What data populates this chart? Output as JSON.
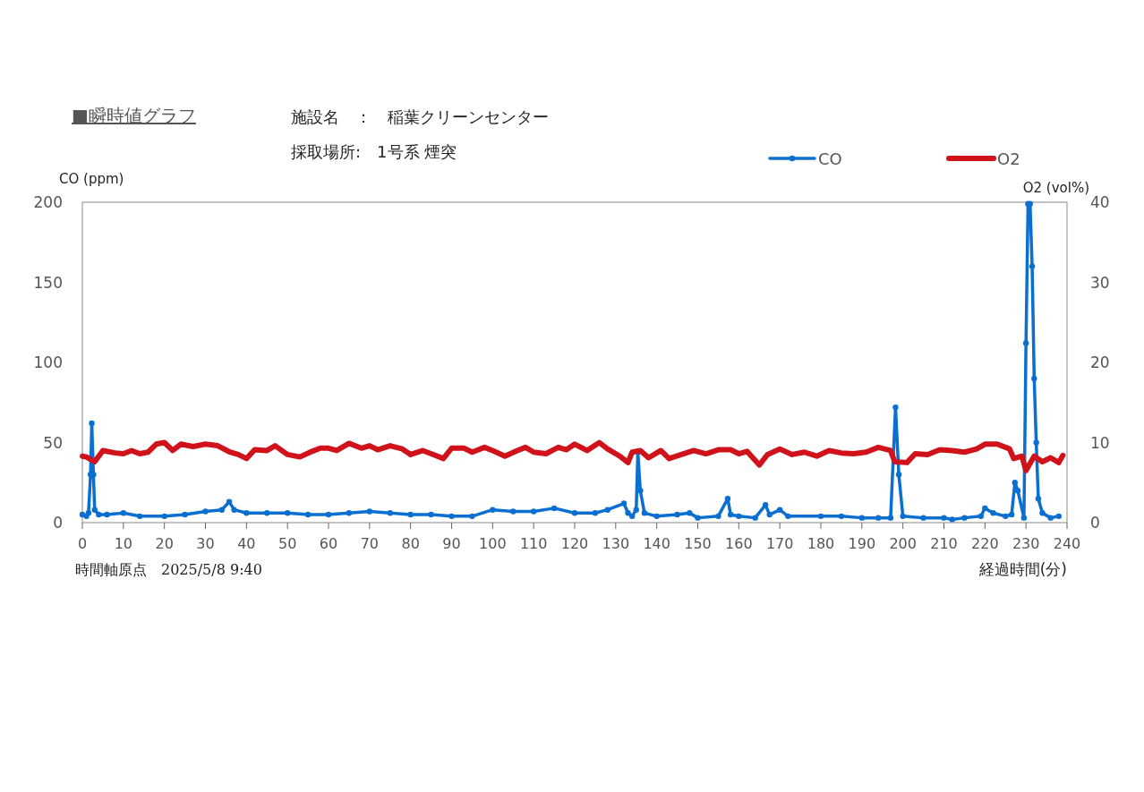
{
  "chart_data": {
    "type": "line",
    "title": "■瞬時値グラフ",
    "subtitle": "施設名　：　稲葉クリーンセンター",
    "annotations": [
      "採取場所:　1号系 煙突",
      "時間軸原点　2025/5/8 9:40"
    ],
    "xlabel": "経過時間(分)",
    "ylabel": "CO (ppm)",
    "y2label": "O2  (vol%)",
    "xlim": [
      0,
      240
    ],
    "xticks": [
      0,
      10,
      20,
      30,
      40,
      50,
      60,
      70,
      80,
      90,
      100,
      110,
      120,
      130,
      140,
      150,
      160,
      170,
      180,
      190,
      200,
      210,
      220,
      230,
      240
    ],
    "ylim": [
      0,
      200
    ],
    "yticks": [
      0,
      50,
      100,
      150,
      200
    ],
    "y2lim": [
      0,
      40
    ],
    "y2ticks": [
      0,
      10,
      20,
      30,
      40
    ],
    "grid": false,
    "legend": "top right",
    "series": [
      {
        "name": "CO",
        "color": "#0a6fd0",
        "marker": "circle",
        "x": [
          0,
          1,
          1.5,
          2,
          2.3,
          2.7,
          3,
          4,
          6,
          10,
          14,
          20,
          25,
          30,
          34,
          35.8,
          37,
          40,
          45,
          50,
          55,
          60,
          65,
          70,
          75,
          80,
          85,
          90,
          95,
          100,
          105,
          110,
          115,
          120,
          125,
          128,
          132,
          133,
          134,
          135,
          135.4,
          136,
          137,
          140,
          145,
          148,
          150,
          155,
          157.3,
          158,
          160,
          164,
          166.5,
          167.5,
          170,
          172,
          180,
          185,
          190,
          194,
          197,
          198.2,
          199,
          200,
          205,
          210,
          212,
          215,
          219,
          220,
          222,
          225,
          226.5,
          227.3,
          228,
          229.5,
          230,
          230.5,
          231,
          231.5,
          232,
          232.5,
          233,
          234,
          236,
          238
        ],
        "values": [
          5,
          4,
          6,
          30,
          62,
          30,
          8,
          5,
          5,
          6,
          4,
          4,
          5,
          7,
          8,
          13,
          8,
          6,
          6,
          6,
          5,
          5,
          6,
          7,
          6,
          5,
          5,
          4,
          4,
          8,
          7,
          7,
          9,
          6,
          6,
          8,
          12,
          6,
          4,
          8,
          44,
          20,
          6,
          4,
          5,
          6,
          3,
          4,
          15,
          5,
          4,
          3,
          11,
          5,
          8,
          4,
          4,
          4,
          3,
          3,
          3,
          72,
          30,
          4,
          3,
          3,
          2,
          3,
          4,
          9,
          6,
          4,
          5,
          25,
          20,
          3,
          112,
          199,
          199,
          160,
          90,
          50,
          15,
          6,
          3,
          4
        ]
      },
      {
        "name": "O2",
        "color": "#d0121b",
        "marker": "none",
        "axis": "y2",
        "x": [
          0,
          1,
          3,
          5,
          8,
          10,
          12,
          14,
          16,
          18,
          20,
          22,
          24,
          27,
          30,
          33,
          36,
          38,
          40,
          42,
          45,
          47,
          50,
          53,
          56,
          58,
          60,
          62,
          65,
          68,
          70,
          72,
          75,
          78,
          80,
          83,
          85,
          88,
          90,
          93,
          95,
          98,
          100,
          103,
          106,
          108,
          110,
          113,
          116,
          118,
          120,
          123,
          126,
          128,
          131,
          133,
          134,
          136,
          138,
          141,
          143,
          146,
          149,
          152,
          155,
          158,
          160,
          162,
          165,
          167,
          170,
          173,
          176,
          179,
          182,
          185,
          188,
          191,
          194,
          197,
          198,
          201,
          203,
          206,
          209,
          212,
          215,
          218,
          220,
          223,
          226,
          227,
          229,
          230,
          232,
          234,
          236,
          238,
          239
        ],
        "values": [
          8.3,
          8.2,
          7.6,
          9,
          8.7,
          8.6,
          9,
          8.6,
          8.8,
          9.8,
          10,
          9,
          9.8,
          9.5,
          9.8,
          9.6,
          8.8,
          8.5,
          8,
          9.1,
          9,
          9.6,
          8.5,
          8.2,
          8.9,
          9.3,
          9.3,
          9,
          9.9,
          9.3,
          9.6,
          9.1,
          9.6,
          9.2,
          8.5,
          9,
          8.6,
          8,
          9.3,
          9.3,
          8.8,
          9.4,
          9,
          8.3,
          9,
          9.4,
          8.8,
          8.6,
          9.4,
          9.1,
          9.8,
          9,
          10,
          9.2,
          8.3,
          7.5,
          8.8,
          9,
          8.1,
          9,
          8,
          8.5,
          9,
          8.6,
          9.1,
          9.1,
          8.6,
          8.9,
          7.2,
          8.5,
          9.2,
          8.5,
          8.8,
          8.3,
          9,
          8.7,
          8.6,
          8.8,
          9.4,
          9,
          7.6,
          7.5,
          8.6,
          8.5,
          9.1,
          9,
          8.8,
          9.2,
          9.8,
          9.8,
          9.2,
          8,
          8.3,
          6.5,
          8.3,
          7.6,
          8.1,
          7.5,
          8.4
        ]
      }
    ]
  }
}
